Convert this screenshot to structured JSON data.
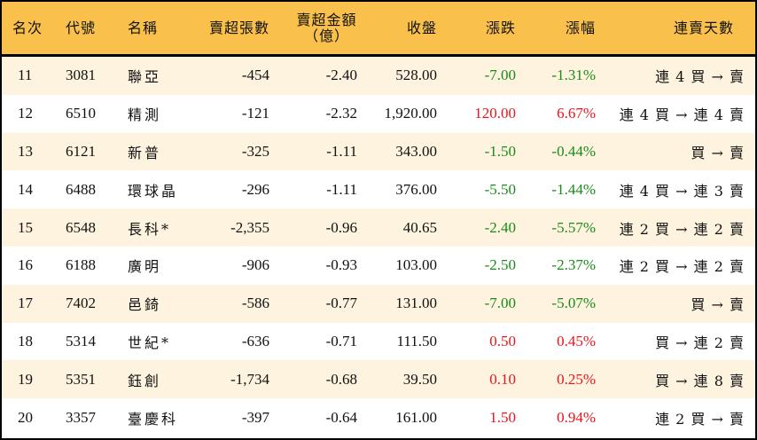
{
  "colors": {
    "header_bg": "#F9C04C",
    "row_odd_bg": "#FDF3DE",
    "row_even_bg": "#FFFFFF",
    "up": "#E8141B",
    "down": "#1A8A1A",
    "border": "#000000"
  },
  "table": {
    "headers": {
      "rank": "名次",
      "code": "代號",
      "name": "名稱",
      "net_sell_volume": "賣超張數",
      "net_sell_amount_line1": "賣超金額",
      "net_sell_amount_line2": "（億）",
      "close": "收盤",
      "change": "漲跌",
      "change_pct": "漲幅",
      "streak": "連賣天數"
    },
    "rows": [
      {
        "rank": "11",
        "code": "3081",
        "name": "聯亞",
        "net_sell_volume": "-454",
        "net_sell_amount": "-2.40",
        "close": "528.00",
        "change": "-7.00",
        "change_pct": "-1.31%",
        "direction": "down",
        "streak": "連 4 買 → 賣"
      },
      {
        "rank": "12",
        "code": "6510",
        "name": "精測",
        "net_sell_volume": "-121",
        "net_sell_amount": "-2.32",
        "close": "1,920.00",
        "change": "120.00",
        "change_pct": "6.67%",
        "direction": "up",
        "streak": "連 4 買 → 連 4 賣"
      },
      {
        "rank": "13",
        "code": "6121",
        "name": "新普",
        "net_sell_volume": "-325",
        "net_sell_amount": "-1.11",
        "close": "343.00",
        "change": "-1.50",
        "change_pct": "-0.44%",
        "direction": "down",
        "streak": "買 → 賣"
      },
      {
        "rank": "14",
        "code": "6488",
        "name": "環球晶",
        "net_sell_volume": "-296",
        "net_sell_amount": "-1.11",
        "close": "376.00",
        "change": "-5.50",
        "change_pct": "-1.44%",
        "direction": "down",
        "streak": "連 4 買 → 連 3 賣"
      },
      {
        "rank": "15",
        "code": "6548",
        "name": "長科*",
        "net_sell_volume": "-2,355",
        "net_sell_amount": "-0.96",
        "close": "40.65",
        "change": "-2.40",
        "change_pct": "-5.57%",
        "direction": "down",
        "streak": "連 2 買 → 連 2 賣"
      },
      {
        "rank": "16",
        "code": "6188",
        "name": "廣明",
        "net_sell_volume": "-906",
        "net_sell_amount": "-0.93",
        "close": "103.00",
        "change": "-2.50",
        "change_pct": "-2.37%",
        "direction": "down",
        "streak": "連 2 買 → 連 2 賣"
      },
      {
        "rank": "17",
        "code": "7402",
        "name": "邑錡",
        "net_sell_volume": "-586",
        "net_sell_amount": "-0.77",
        "close": "131.00",
        "change": "-7.00",
        "change_pct": "-5.07%",
        "direction": "down",
        "streak": "買 → 賣"
      },
      {
        "rank": "18",
        "code": "5314",
        "name": "世紀*",
        "net_sell_volume": "-636",
        "net_sell_amount": "-0.71",
        "close": "111.50",
        "change": "0.50",
        "change_pct": "0.45%",
        "direction": "up",
        "streak": "買 → 連 2 賣"
      },
      {
        "rank": "19",
        "code": "5351",
        "name": "鈺創",
        "net_sell_volume": "-1,734",
        "net_sell_amount": "-0.68",
        "close": "39.50",
        "change": "0.10",
        "change_pct": "0.25%",
        "direction": "up",
        "streak": "買 → 連 8 賣"
      },
      {
        "rank": "20",
        "code": "3357",
        "name": "臺慶科",
        "net_sell_volume": "-397",
        "net_sell_amount": "-0.64",
        "close": "161.00",
        "change": "1.50",
        "change_pct": "0.94%",
        "direction": "up",
        "streak": "連 2 買 → 賣"
      }
    ]
  }
}
